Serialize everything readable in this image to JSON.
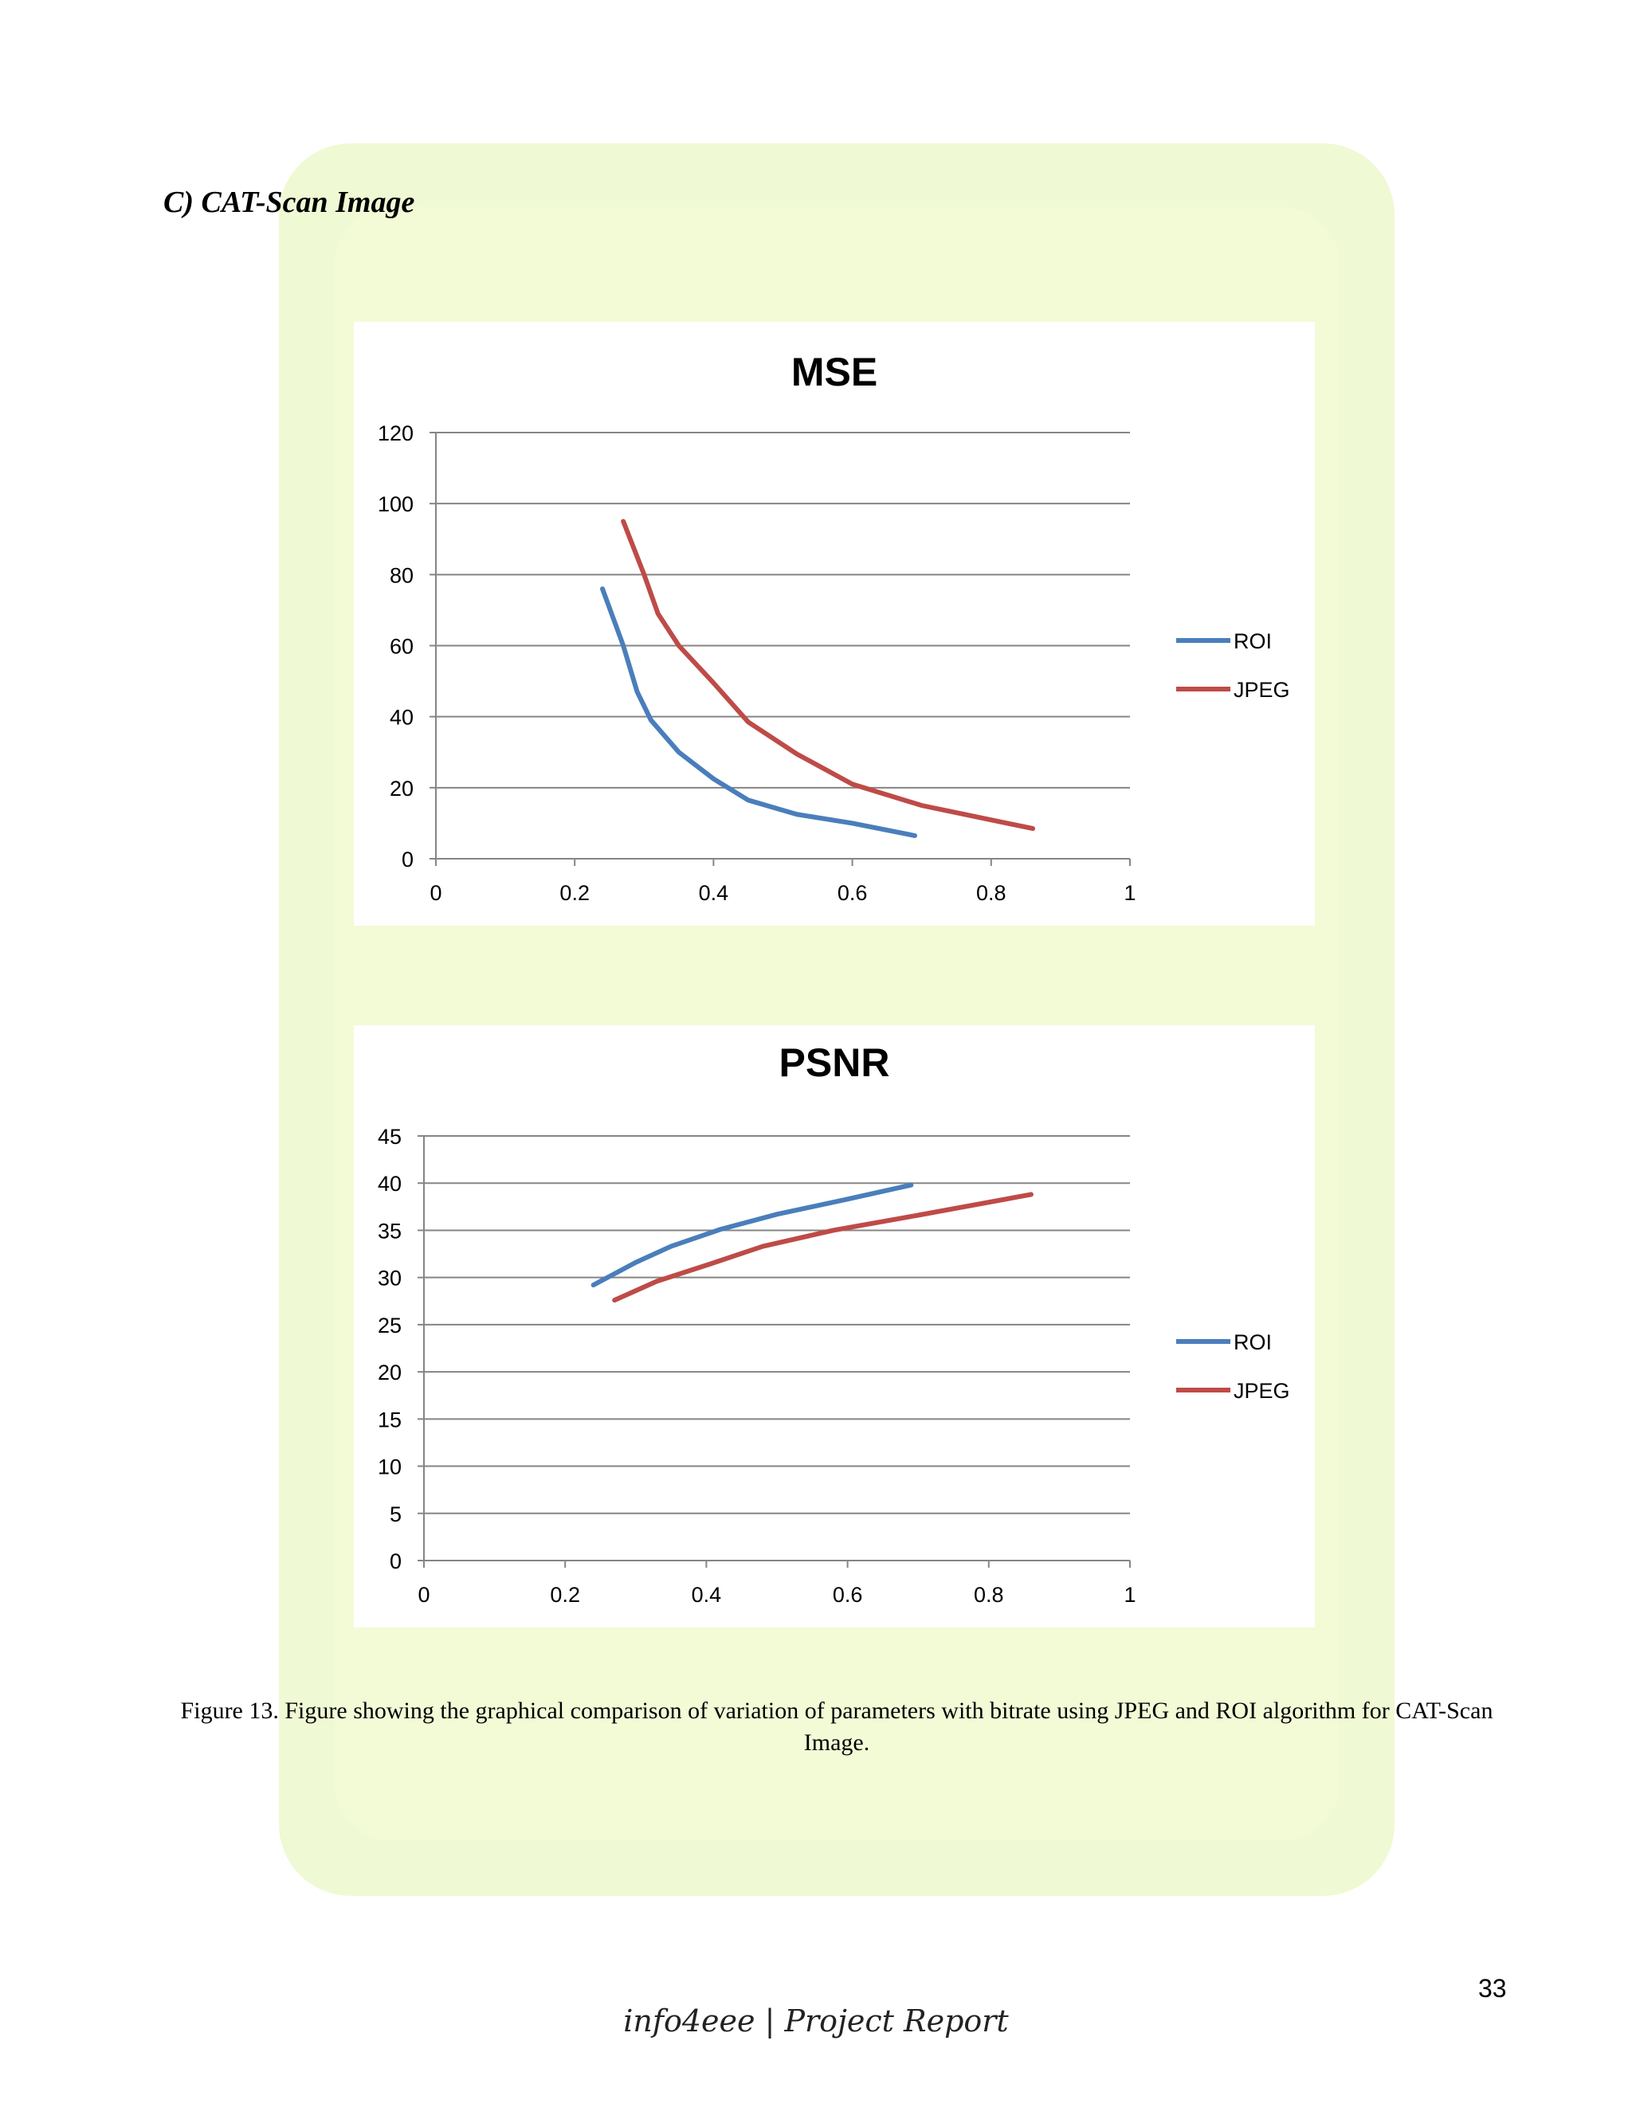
{
  "section_heading": "C) CAT-Scan Image",
  "chart_data": [
    {
      "type": "line",
      "title": "MSE",
      "xlim": [
        0,
        1
      ],
      "xticks": [
        "0",
        "0.2",
        "0.4",
        "0.6",
        "0.8",
        "1"
      ],
      "ylim": [
        0,
        120
      ],
      "yticks": [
        "0",
        "20",
        "40",
        "60",
        "80",
        "100",
        "120"
      ],
      "grid": true,
      "legend_position": "right",
      "series": [
        {
          "name": "ROI",
          "color": "#4a7ebb",
          "x": [
            0.24,
            0.27,
            0.29,
            0.31,
            0.35,
            0.4,
            0.45,
            0.52,
            0.6,
            0.69
          ],
          "y": [
            76,
            60,
            47,
            39,
            30,
            22.5,
            16.5,
            12.5,
            10,
            6.5
          ]
        },
        {
          "name": "JPEG",
          "color": "#be4b48",
          "x": [
            0.27,
            0.3,
            0.32,
            0.35,
            0.4,
            0.45,
            0.52,
            0.6,
            0.7,
            0.86
          ],
          "y": [
            95,
            80,
            69,
            60,
            49.5,
            38.5,
            29.5,
            21,
            15,
            8.5
          ]
        }
      ]
    },
    {
      "type": "line",
      "title": "PSNR",
      "xlim": [
        0,
        1
      ],
      "xticks": [
        "0",
        "0.2",
        "0.4",
        "0.6",
        "0.8",
        "1"
      ],
      "ylim": [
        0,
        45
      ],
      "yticks": [
        "0",
        "5",
        "10",
        "15",
        "20",
        "25",
        "30",
        "35",
        "40",
        "45"
      ],
      "grid": true,
      "legend_position": "right",
      "series": [
        {
          "name": "ROI",
          "color": "#4a7ebb",
          "x": [
            0.24,
            0.3,
            0.35,
            0.42,
            0.5,
            0.6,
            0.69
          ],
          "y": [
            29.2,
            31.6,
            33.3,
            35.1,
            36.7,
            38.3,
            39.8
          ]
        },
        {
          "name": "JPEG",
          "color": "#be4b48",
          "x": [
            0.27,
            0.33,
            0.4,
            0.48,
            0.58,
            0.7,
            0.86
          ],
          "y": [
            27.6,
            29.6,
            31.3,
            33.3,
            35,
            36.6,
            38.8
          ]
        }
      ]
    }
  ],
  "caption": "Figure 13.  Figure showing the graphical comparison of variation of parameters with bitrate using JPEG and ROI algorithm for CAT-Scan Image.",
  "page_number": "33",
  "footer": "info4eee | Project Report"
}
